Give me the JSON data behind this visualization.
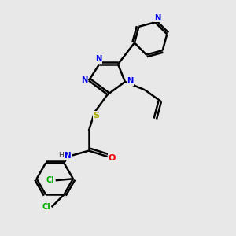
{
  "background_color": "#e8e8e8",
  "bond_color": "#000000",
  "bond_width": 1.8,
  "N_color": "#0000ee",
  "O_color": "#ee0000",
  "S_color": "#aaaa00",
  "Cl_color": "#00aa00",
  "figsize": [
    3.0,
    3.0
  ],
  "dpi": 100,
  "xlim": [
    0,
    10
  ],
  "ylim": [
    0,
    10
  ]
}
